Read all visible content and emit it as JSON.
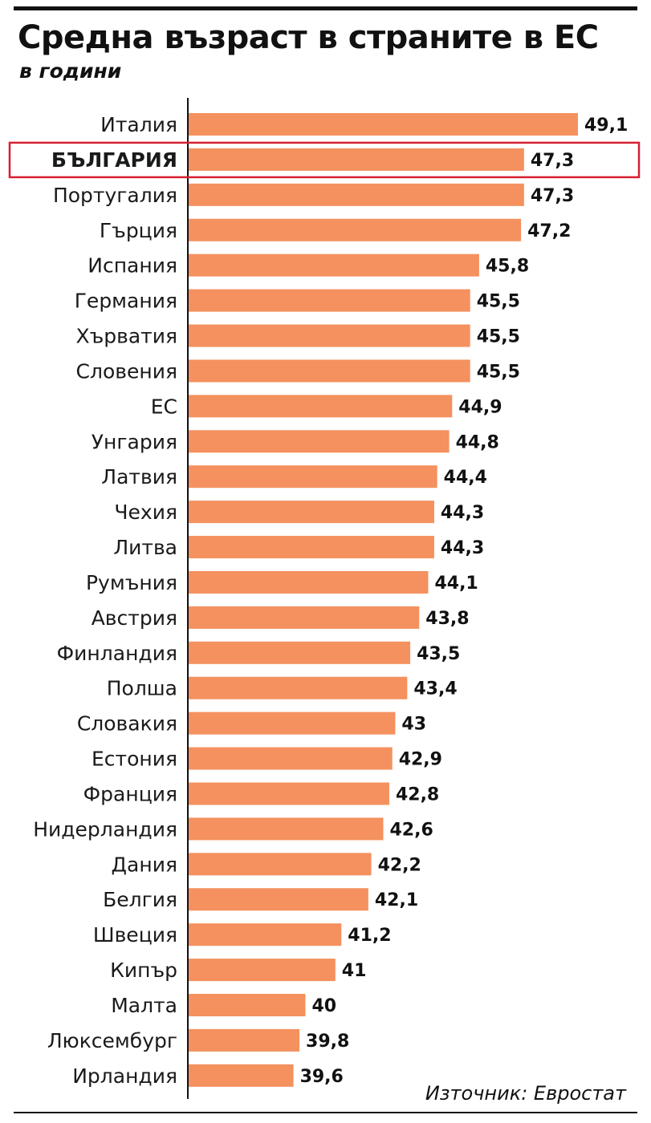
{
  "chart_data": {
    "type": "bar",
    "orientation": "horizontal",
    "title": "Средна възраст в страните в ЕС",
    "subtitle": "в години",
    "categories": [
      "Италия",
      "БЪЛГАРИЯ",
      "Португалия",
      "Гърция",
      "Испания",
      "Германия",
      "Хърватия",
      "Словения",
      "ЕС",
      "Унгария",
      "Латвия",
      "Чехия",
      "Литва",
      "Румъния",
      "Австрия",
      "Финландия",
      "Полша",
      "Словакия",
      "Естония",
      "Франция",
      "Нидерландия",
      "Дания",
      "Белгия",
      "Швеция",
      "Кипър",
      "Малта",
      "Люксембург",
      "Ирландия"
    ],
    "values": [
      49.1,
      47.3,
      47.3,
      47.2,
      45.8,
      45.5,
      45.5,
      45.5,
      44.9,
      44.8,
      44.4,
      44.3,
      44.3,
      44.1,
      43.8,
      43.5,
      43.4,
      43,
      42.9,
      42.8,
      42.6,
      42.2,
      42.1,
      41.2,
      41,
      40,
      39.8,
      39.6
    ],
    "value_labels": [
      "49,1",
      "47,3",
      "47,3",
      "47,2",
      "45,8",
      "45,5",
      "45,5",
      "45,5",
      "44,9",
      "44,8",
      "44,4",
      "44,3",
      "44,3",
      "44,1",
      "43,8",
      "43,5",
      "43,4",
      "43",
      "42,9",
      "42,8",
      "42,6",
      "42,2",
      "42,1",
      "41,2",
      "41",
      "40",
      "39,8",
      "39,6"
    ],
    "highlighted_category": "БЪЛГАРИЯ",
    "axis_min": 36.1,
    "xlabel": "",
    "ylabel": "",
    "grid": false,
    "legend": "none",
    "source": "Източник: Евростат"
  },
  "colors": {
    "bar": "#f4915f",
    "highlight_box": "#d62030",
    "text": "#111111"
  }
}
